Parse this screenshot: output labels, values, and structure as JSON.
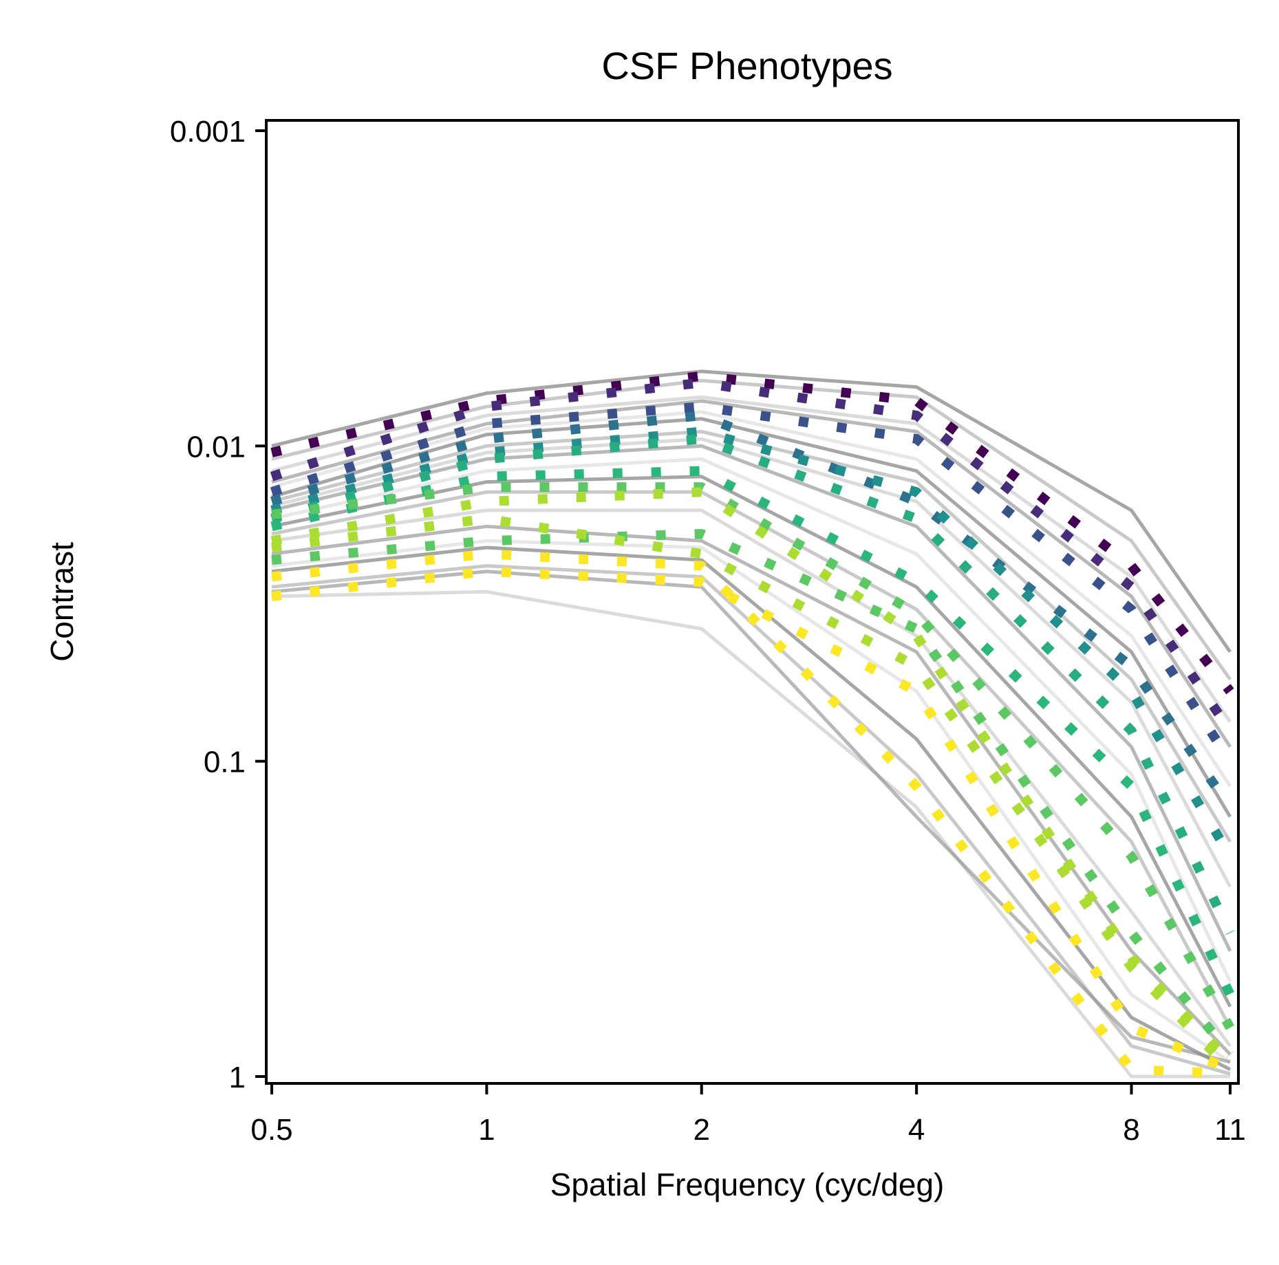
{
  "chart_data": {
    "type": "line",
    "title": "CSF Phenotypes",
    "xlabel": "Spatial Frequency (cyc/deg)",
    "ylabel": "Contrast",
    "x_scale": "log",
    "y_scale": "log",
    "y_inverted": true,
    "xlim": [
      0.5,
      11
    ],
    "ylim": [
      1,
      0.001
    ],
    "x_ticks": [
      0.5,
      1,
      2,
      4,
      8,
      11
    ],
    "x_tick_labels": [
      "0.5",
      "1",
      "2",
      "4",
      "8",
      "11"
    ],
    "y_ticks": [
      0.001,
      0.01,
      0.1,
      1
    ],
    "y_tick_labels": [
      "0.001",
      "0.01",
      "0.1",
      "1"
    ],
    "grid": false,
    "legend": "none",
    "x": [
      0.5,
      1,
      2,
      4,
      8,
      11
    ],
    "colormap": "viridis",
    "colors": {
      "individual_lines": "#888888",
      "phenotype_palette": [
        "#440154",
        "#472c7a",
        "#3b518b",
        "#2c718e",
        "#21908d",
        "#27ad81",
        "#5cc863",
        "#aadc32",
        "#fde725"
      ]
    },
    "phenotypes": [
      {
        "values": [
          0.0105,
          0.0072,
          0.006,
          0.0072,
          0.024,
          0.06
        ],
        "color": "#440154"
      },
      {
        "values": [
          0.0125,
          0.0075,
          0.0063,
          0.008,
          0.028,
          0.08
        ],
        "color": "#472c7a"
      },
      {
        "values": [
          0.014,
          0.0085,
          0.0075,
          0.0095,
          0.033,
          0.1
        ],
        "color": "#3b518b"
      },
      {
        "values": [
          0.015,
          0.0095,
          0.008,
          0.015,
          0.05,
          0.14
        ],
        "color": "#2c718e"
      },
      {
        "values": [
          0.016,
          0.0105,
          0.009,
          0.014,
          0.06,
          0.2
        ],
        "color": "#21908d"
      },
      {
        "values": [
          0.017,
          0.011,
          0.0095,
          0.017,
          0.08,
          0.35
        ],
        "color": "#27ad81"
      },
      {
        "values": [
          0.018,
          0.0125,
          0.012,
          0.027,
          0.12,
          0.55
        ],
        "color": "#2bb67b"
      },
      {
        "values": [
          0.0165,
          0.0135,
          0.0135,
          0.034,
          0.2,
          0.7
        ],
        "color": "#5cc863"
      },
      {
        "values": [
          0.023,
          0.02,
          0.019,
          0.038,
          0.35,
          0.85
        ],
        "color": "#5cc863"
      },
      {
        "values": [
          0.02,
          0.015,
          0.014,
          0.04,
          0.42,
          0.9
        ],
        "color": "#aadc32"
      },
      {
        "values": [
          0.021,
          0.017,
          0.022,
          0.05,
          0.45,
          0.95
        ],
        "color": "#aadc32"
      },
      {
        "values": [
          0.026,
          0.022,
          0.024,
          0.12,
          0.95,
          0.98
        ],
        "color": "#fde725"
      },
      {
        "values": [
          0.03,
          0.025,
          0.027,
          0.06,
          0.7,
          0.95
        ],
        "color": "#fde725"
      }
    ],
    "individual_lines": [
      {
        "values": [
          0.01,
          0.0068,
          0.0058,
          0.0065,
          0.016,
          0.045
        ]
      },
      {
        "values": [
          0.011,
          0.0075,
          0.0062,
          0.007,
          0.02,
          0.055
        ]
      },
      {
        "values": [
          0.012,
          0.008,
          0.007,
          0.0085,
          0.026,
          0.075
        ]
      },
      {
        "values": [
          0.013,
          0.0085,
          0.0072,
          0.009,
          0.03,
          0.09
        ]
      },
      {
        "values": [
          0.0135,
          0.0088,
          0.0078,
          0.011,
          0.04,
          0.12
        ]
      },
      {
        "values": [
          0.0145,
          0.0092,
          0.0082,
          0.012,
          0.045,
          0.15
        ]
      },
      {
        "values": [
          0.015,
          0.01,
          0.009,
          0.013,
          0.055,
          0.18
        ]
      },
      {
        "values": [
          0.0155,
          0.0105,
          0.0095,
          0.015,
          0.065,
          0.25
        ]
      },
      {
        "values": [
          0.016,
          0.011,
          0.01,
          0.018,
          0.09,
          0.4
        ]
      },
      {
        "values": [
          0.017,
          0.012,
          0.011,
          0.022,
          0.11,
          0.5
        ]
      },
      {
        "values": [
          0.018,
          0.013,
          0.0125,
          0.028,
          0.15,
          0.6
        ]
      },
      {
        "values": [
          0.019,
          0.014,
          0.014,
          0.033,
          0.18,
          0.7
        ]
      },
      {
        "values": [
          0.02,
          0.016,
          0.016,
          0.04,
          0.3,
          0.8
        ]
      },
      {
        "values": [
          0.022,
          0.018,
          0.02,
          0.045,
          0.4,
          0.85
        ]
      },
      {
        "values": [
          0.024,
          0.02,
          0.021,
          0.06,
          0.55,
          0.9
        ]
      },
      {
        "values": [
          0.025,
          0.021,
          0.023,
          0.085,
          0.65,
          0.95
        ]
      },
      {
        "values": [
          0.028,
          0.024,
          0.026,
          0.11,
          0.8,
          0.98
        ]
      },
      {
        "values": [
          0.03,
          0.029,
          0.038,
          0.14,
          1.0,
          1.0
        ]
      },
      {
        "values": [
          0.029,
          0.025,
          0.028,
          0.15,
          0.75,
          0.9
        ]
      }
    ]
  }
}
